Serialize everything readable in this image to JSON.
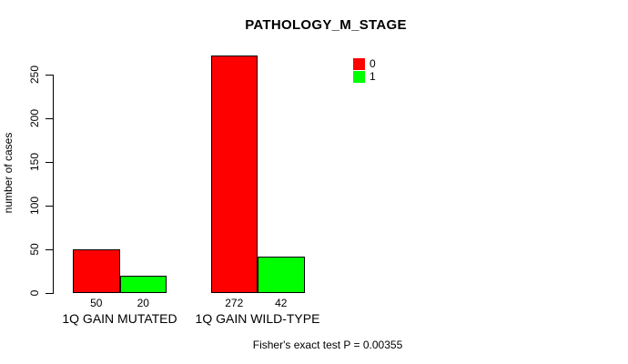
{
  "chart_data": {
    "type": "bar",
    "title": "PATHOLOGY_M_STAGE",
    "ylabel": "number of cases",
    "xlabel": "",
    "categories": [
      "1Q GAIN MUTATED",
      "1Q GAIN WILD-TYPE"
    ],
    "series": [
      {
        "name": "0",
        "color": "#ff0000",
        "values": [
          50,
          272
        ]
      },
      {
        "name": "1",
        "color": "#00ff00",
        "values": [
          20,
          42
        ]
      }
    ],
    "bar_value_labels": [
      [
        50,
        20
      ],
      [
        272,
        42
      ]
    ],
    "yticks": [
      0,
      50,
      100,
      150,
      200,
      250
    ],
    "ylim": [
      0,
      250
    ],
    "grid": false,
    "legend_position": "top-right",
    "footnote": "Fisher's exact test P = 0.00355",
    "colors": {
      "bar_border": "#000000",
      "axis": "#000000",
      "text": "#000000",
      "background": "#ffffff"
    }
  }
}
